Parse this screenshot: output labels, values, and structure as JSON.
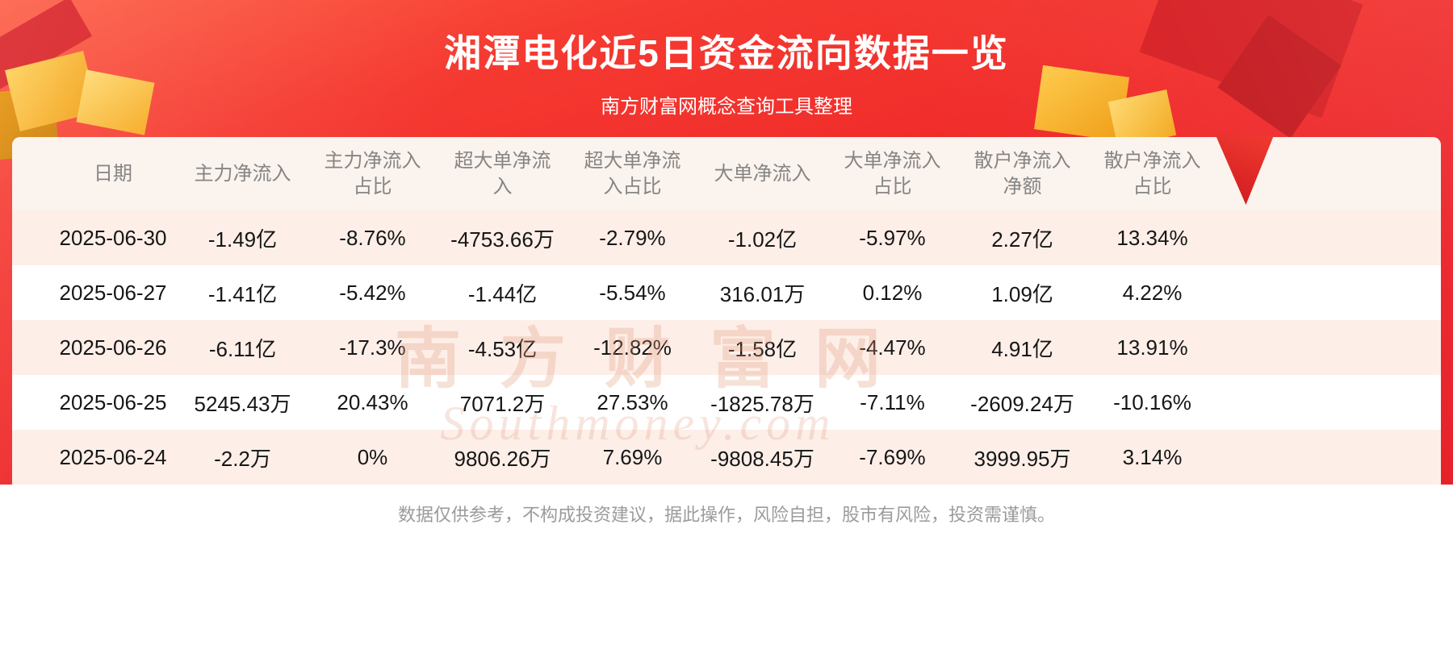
{
  "page": {
    "title": "湘潭电化近5日资金流向数据一览",
    "subtitle": "南方财富网概念查询工具整理",
    "disclaimer": "数据仅供参考，不构成投资建议，据此操作，风险自担，股市有风险，投资需谨慎。",
    "watermark_cn": "南方财富网",
    "watermark_en": "Southmoney.com"
  },
  "colors": {
    "banner_top": "#fd5a41",
    "banner_bottom": "#ea1a22",
    "header_bg": "#fbf3ee",
    "row_stripe": "#fdeee8",
    "gold_accent": "#f6a21c"
  },
  "chart_data": {
    "type": "table",
    "title": "湘潭电化近5日资金流向数据一览",
    "subtitle": "南方财富网概念查询工具整理",
    "columns": [
      "日期",
      "主力净流入",
      "主力净流入\n占比",
      "超大单净流\n入",
      "超大单净流\n入占比",
      "大单净流入",
      "大单净流入\n占比",
      "散户净流入\n净额",
      "散户净流入\n占比"
    ],
    "rows": [
      [
        "2025-06-30",
        "-1.49亿",
        "-8.76%",
        "-4753.66万",
        "-2.79%",
        "-1.02亿",
        "-5.97%",
        "2.27亿",
        "13.34%"
      ],
      [
        "2025-06-27",
        "-1.41亿",
        "-5.42%",
        "-1.44亿",
        "-5.54%",
        "316.01万",
        "0.12%",
        "1.09亿",
        "4.22%"
      ],
      [
        "2025-06-26",
        "-6.11亿",
        "-17.3%",
        "-4.53亿",
        "-12.82%",
        "-1.58亿",
        "-4.47%",
        "4.91亿",
        "13.91%"
      ],
      [
        "2025-06-25",
        "5245.43万",
        "20.43%",
        "7071.2万",
        "27.53%",
        "-1825.78万",
        "-7.11%",
        "-2609.24万",
        "-10.16%"
      ],
      [
        "2025-06-24",
        "-2.2万",
        "0%",
        "9806.26万",
        "7.69%",
        "-9808.45万",
        "-7.69%",
        "3999.95万",
        "3.14%"
      ]
    ]
  }
}
